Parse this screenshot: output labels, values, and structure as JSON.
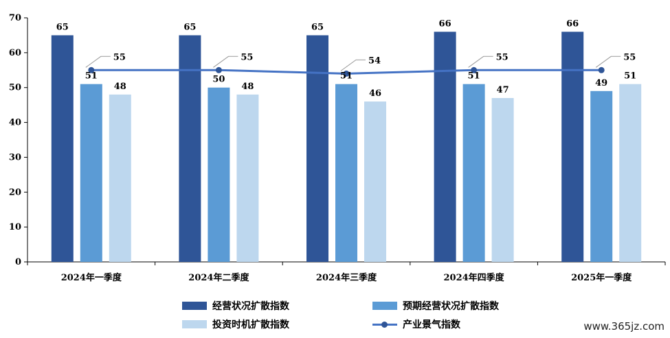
{
  "chart_data": {
    "type": "bar",
    "categories": [
      "2024年一季度",
      "2024年二季度",
      "2024年三季度",
      "2024年四季度",
      "2025年一季度"
    ],
    "series": [
      {
        "name": "经营状况扩散指数",
        "type": "bar",
        "color": "#2f5597",
        "values": [
          65,
          65,
          65,
          66,
          66
        ]
      },
      {
        "name": "预期经营状况扩散指数",
        "type": "bar",
        "color": "#5b9bd5",
        "values": [
          51,
          50,
          51,
          51,
          49
        ]
      },
      {
        "name": "投资时机扩散指数",
        "type": "bar",
        "color": "#bdd7ee",
        "values": [
          48,
          48,
          46,
          47,
          51
        ]
      },
      {
        "name": "产业景气指数",
        "type": "line",
        "color": "#4472c4",
        "values": [
          55,
          55,
          54,
          55,
          55
        ]
      }
    ],
    "ylim": [
      0,
      70
    ],
    "yticks": [
      0,
      10,
      20,
      30,
      40,
      50,
      60,
      70
    ],
    "legend_position": "bottom",
    "grid": false
  },
  "watermark": "www.365jz.com"
}
